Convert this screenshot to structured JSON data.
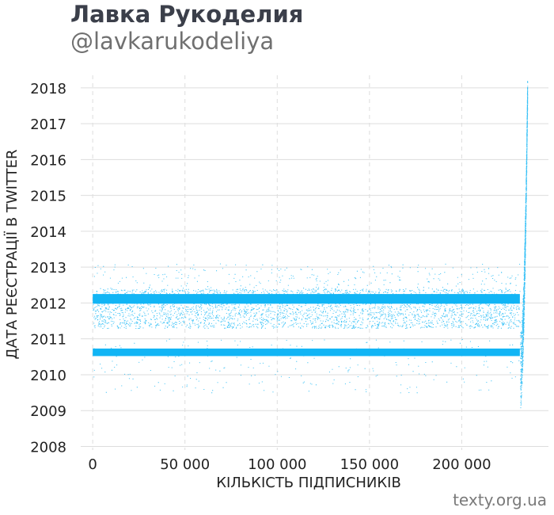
{
  "header": {
    "title": "Лавка Рукоделия",
    "subtitle": "@lavkarukodeliya"
  },
  "footer": {
    "credit": "texty.org.ua"
  },
  "colors": {
    "points": "#12b5f5",
    "grid": "#dddddd",
    "text": "#222222",
    "title": "#3b3f4a",
    "subtitle": "#707070"
  },
  "chart_data": {
    "type": "scatter",
    "xlabel": "КІЛЬКІСТЬ ПІДПИСНИКІВ",
    "ylabel": "ДАТА РЕЄСТРАЦІЇ В TWITTER",
    "xlim": [
      -6500,
      247000
    ],
    "ylim": [
      2007.9,
      2018.35
    ],
    "x_ticks": [
      0,
      50000,
      100000,
      150000,
      200000
    ],
    "x_tick_labels": [
      "0",
      "50 000",
      "100 000",
      "150 000",
      "200 000"
    ],
    "y_ticks": [
      2008,
      2009,
      2010,
      2011,
      2012,
      2013,
      2014,
      2015,
      2016,
      2017,
      2018
    ],
    "y_tick_labels": [
      "2008",
      "2009",
      "2010",
      "2011",
      "2012",
      "2013",
      "2014",
      "2015",
      "2016",
      "2017",
      "2018"
    ],
    "x_grid": true,
    "y_grid": true,
    "dense_bands": [
      {
        "x": [
          0,
          231500
        ],
        "y": [
          2011.98,
          2012.25
        ]
      },
      {
        "x": [
          0,
          231500
        ],
        "y": [
          2010.52,
          2010.73
        ]
      }
    ],
    "scatter_regions": [
      {
        "x": [
          0,
          231500
        ],
        "y": [
          2011.3,
          2012.4
        ],
        "density": "medium"
      },
      {
        "x": [
          0,
          231500
        ],
        "y": [
          2012.4,
          2013.1
        ],
        "density": "sparse"
      },
      {
        "x": [
          0,
          231500
        ],
        "y": [
          2009.5,
          2011.0
        ],
        "density": "sparse"
      }
    ],
    "recent_followers_tail": {
      "x_start": 231500,
      "x_end": 235500,
      "y_start": 2009.3,
      "y_end": 2018.25
    }
  }
}
